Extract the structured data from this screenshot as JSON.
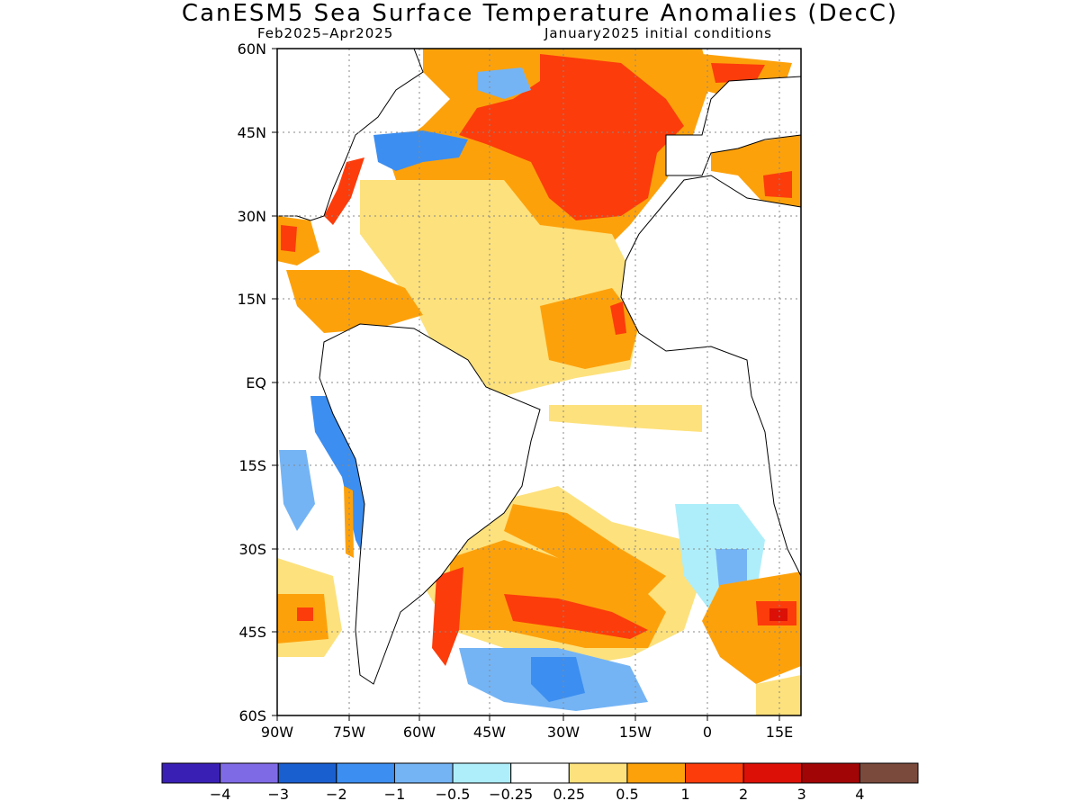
{
  "title": "CanESM5 Sea Surface Temperature Anomalies (DecC)",
  "subtitle_left": "Feb2025–Apr2025",
  "subtitle_right": "January2025 initial conditions",
  "lat_labels": [
    "60N",
    "45N",
    "30N",
    "15N",
    "EQ",
    "15S",
    "30S",
    "45S",
    "60S"
  ],
  "lon_labels": [
    "90W",
    "75W",
    "60W",
    "45W",
    "30W",
    "15W",
    "0",
    "15E"
  ],
  "colorbar": {
    "colors": [
      "#3a1fb5",
      "#7f6ae6",
      "#1a5fd0",
      "#3c8ef0",
      "#74b4f5",
      "#aeeefa",
      "#ffffff",
      "#fde17c",
      "#fda10b",
      "#fc3c0b",
      "#dc1006",
      "#a20505",
      "#7a4a3c"
    ],
    "labels": [
      "−4",
      "−3",
      "−2",
      "−1",
      "−0.5",
      "−0.25",
      "0.25",
      "0.5",
      "1",
      "2",
      "3",
      "4"
    ]
  },
  "map_data": {
    "lat_range": [
      -60,
      60
    ],
    "lon_range": [
      -90,
      17
    ],
    "grid": true,
    "anomaly_regions": [
      {
        "name": "north-atlantic-warm-pool",
        "level": 2,
        "color": "#fc3c0b"
      },
      {
        "name": "subtropical-atlantic-band",
        "level": 0.25,
        "color": "#fde17c"
      },
      {
        "name": "caribbean-warm",
        "level": 0.5,
        "color": "#fda10b"
      },
      {
        "name": "labrador-cold",
        "level": -1,
        "color": "#3c8ef0"
      },
      {
        "name": "chile-coast-cold",
        "level": -1,
        "color": "#3c8ef0"
      },
      {
        "name": "brazil-malvinas-warm",
        "level": 2,
        "color": "#fc3c0b"
      },
      {
        "name": "south-atlantic-cold",
        "level": -0.5,
        "color": "#74b4f5"
      },
      {
        "name": "benguela-cold",
        "level": -0.25,
        "color": "#aeeefa"
      }
    ]
  }
}
